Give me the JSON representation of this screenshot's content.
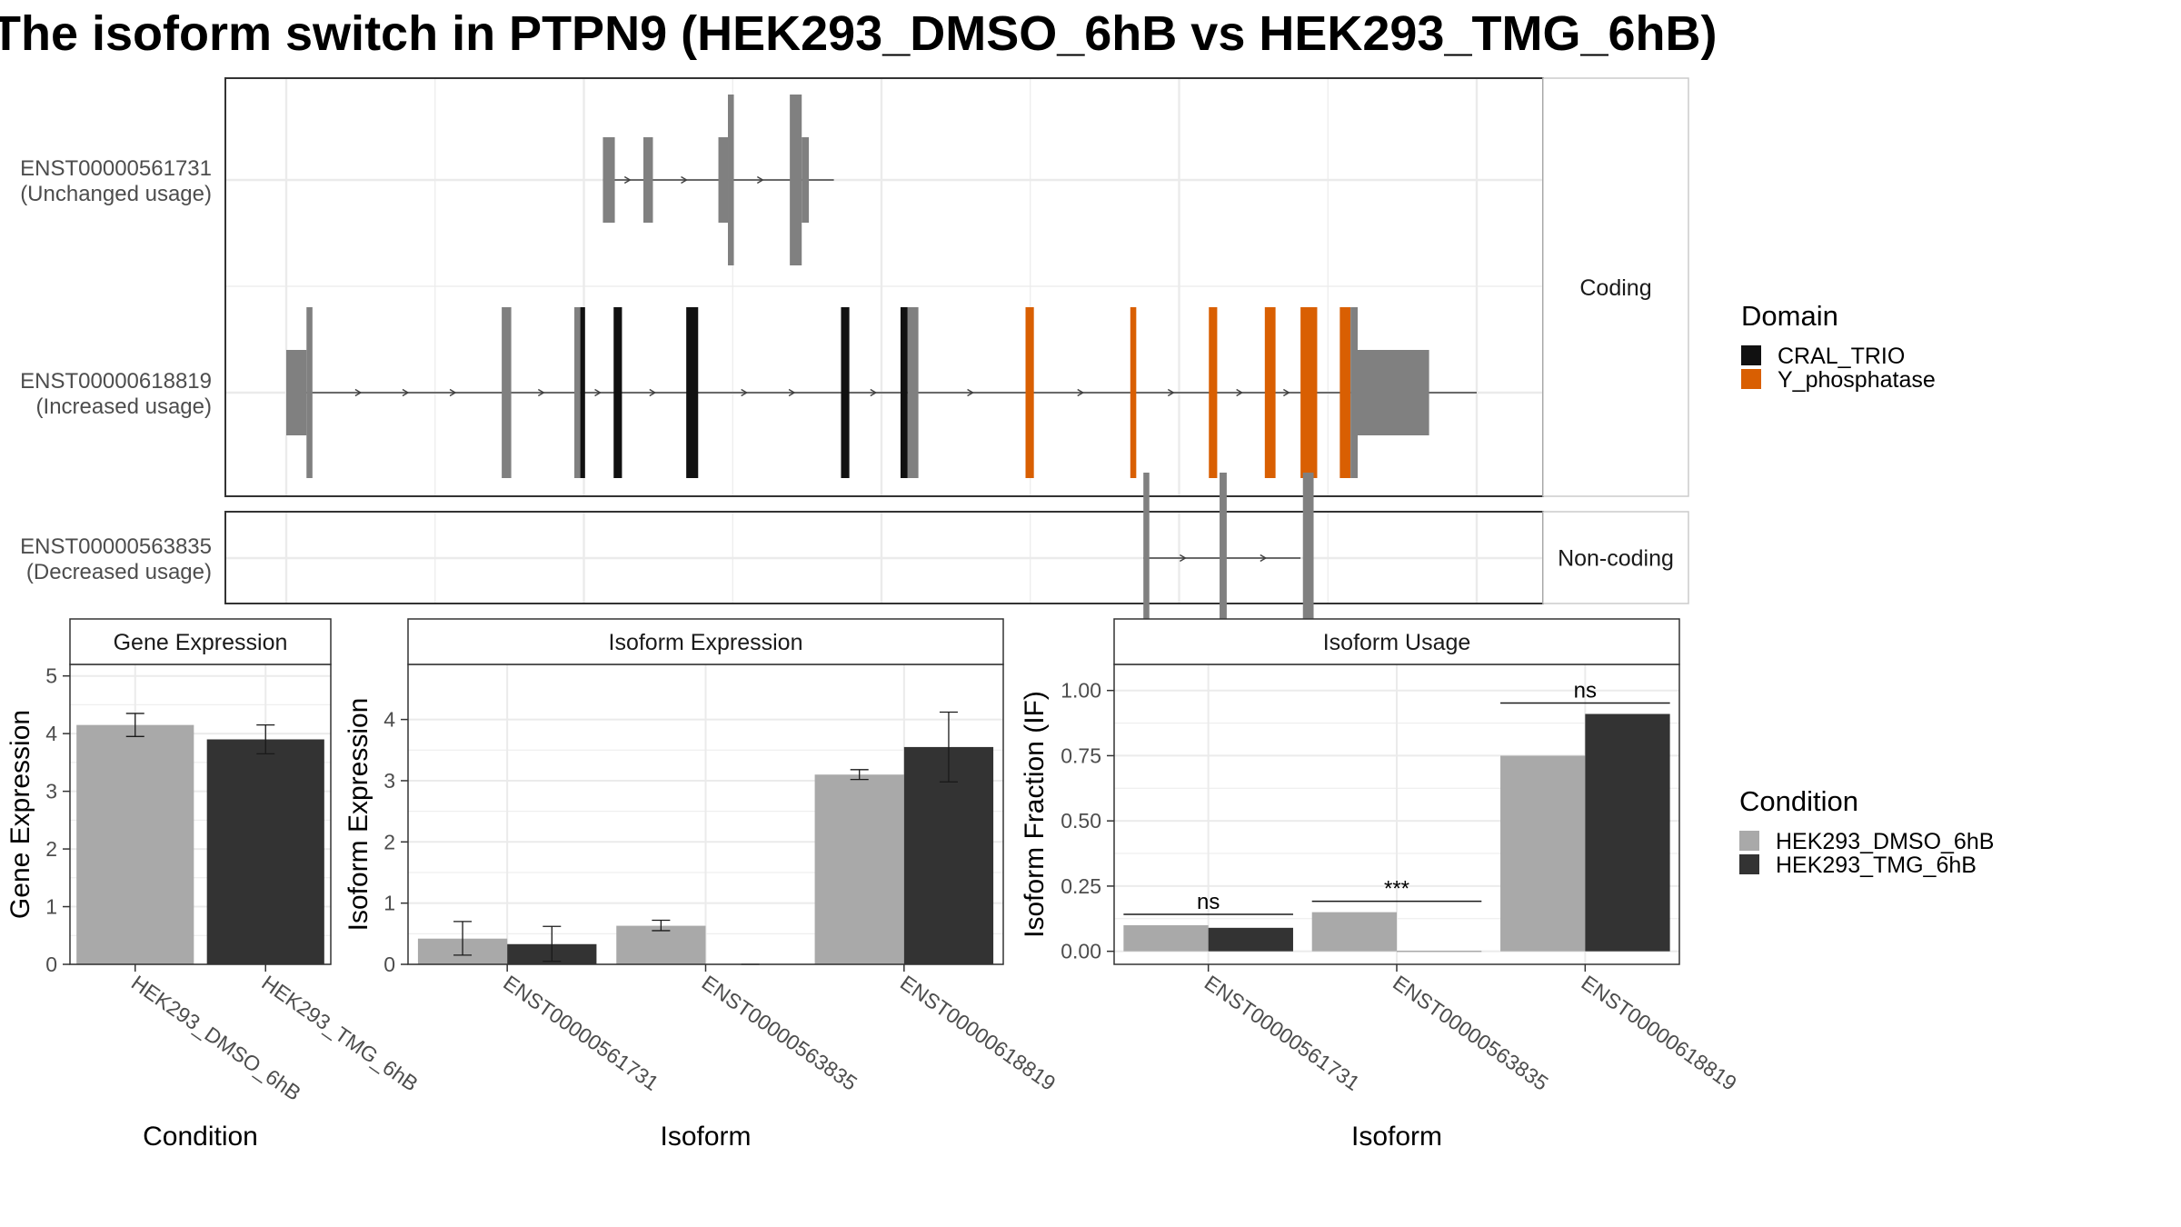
{
  "title": "The isoform switch in PTPN9 (HEK293_DMSO_6hB vs HEK293_TMG_6hB)",
  "colors": {
    "intron": "#404040",
    "exon": "#808080",
    "CRAL_TRIO": "#111111",
    "Y_phosphatase": "#d95f02",
    "cond1": "#a9a9a9",
    "cond2": "#333333",
    "grid": "#ebebeb",
    "strip_bg": "#ffffff"
  },
  "chart_data": [
    {
      "type": "isoform_structure",
      "facets": [
        "Coding",
        "Non-coding"
      ],
      "domain_legend": {
        "title": "Domain",
        "items": [
          "CRAL_TRIO",
          "Y_phosphatase"
        ]
      },
      "x_range": [
        0,
        1000
      ],
      "transcripts": [
        {
          "id": "ENST00000561731",
          "status": "(Unchanged usage)",
          "facet": "Coding",
          "intron": [
            266,
            460
          ],
          "exons": [
            {
              "start": 266,
              "end": 276,
              "kind": "utr",
              "color": "exon"
            },
            {
              "start": 300,
              "end": 308,
              "kind": "utr",
              "color": "exon"
            },
            {
              "start": 363,
              "end": 371,
              "kind": "utr",
              "color": "exon"
            },
            {
              "start": 371,
              "end": 376,
              "kind": "cds",
              "color": "exon"
            },
            {
              "start": 423,
              "end": 433,
              "kind": "cds",
              "color": "exon"
            },
            {
              "start": 433,
              "end": 439,
              "kind": "utr",
              "color": "exon"
            }
          ]
        },
        {
          "id": "ENST00000618819",
          "status": "(Increased usage)",
          "facet": "Coding",
          "intron": [
            0,
            1000
          ],
          "exons": [
            {
              "start": 0,
              "end": 17,
              "kind": "utr",
              "color": "exon"
            },
            {
              "start": 17,
              "end": 22,
              "kind": "cds",
              "color": "exon"
            },
            {
              "start": 181,
              "end": 189,
              "kind": "cds",
              "color": "exon"
            },
            {
              "start": 242,
              "end": 247,
              "kind": "cds",
              "color": "exon"
            },
            {
              "start": 247,
              "end": 251,
              "kind": "cds",
              "color": "CRAL_TRIO"
            },
            {
              "start": 275,
              "end": 282,
              "kind": "cds",
              "color": "CRAL_TRIO"
            },
            {
              "start": 336,
              "end": 346,
              "kind": "cds",
              "color": "CRAL_TRIO"
            },
            {
              "start": 466,
              "end": 473,
              "kind": "cds",
              "color": "CRAL_TRIO"
            },
            {
              "start": 516,
              "end": 522,
              "kind": "cds",
              "color": "CRAL_TRIO"
            },
            {
              "start": 522,
              "end": 531,
              "kind": "cds",
              "color": "exon"
            },
            {
              "start": 621,
              "end": 628,
              "kind": "cds",
              "color": "Y_phosphatase"
            },
            {
              "start": 709,
              "end": 714,
              "kind": "cds",
              "color": "Y_phosphatase"
            },
            {
              "start": 775,
              "end": 782,
              "kind": "cds",
              "color": "Y_phosphatase"
            },
            {
              "start": 822,
              "end": 831,
              "kind": "cds",
              "color": "Y_phosphatase"
            },
            {
              "start": 852,
              "end": 866,
              "kind": "cds",
              "color": "Y_phosphatase"
            },
            {
              "start": 885,
              "end": 894,
              "kind": "cds",
              "color": "Y_phosphatase"
            },
            {
              "start": 894,
              "end": 900,
              "kind": "cds",
              "color": "exon"
            },
            {
              "start": 900,
              "end": 960,
              "kind": "utr",
              "color": "exon"
            }
          ]
        },
        {
          "id": "ENST00000563835",
          "status": "(Decreased usage)",
          "facet": "Non-coding",
          "intron": [
            720,
            852
          ],
          "exons": [
            {
              "start": 720,
              "end": 725,
              "kind": "cds",
              "color": "exon"
            },
            {
              "start": 784,
              "end": 790,
              "kind": "cds",
              "color": "exon"
            },
            {
              "start": 854,
              "end": 863,
              "kind": "cds",
              "color": "exon"
            }
          ]
        }
      ]
    },
    {
      "type": "bar",
      "strip": "Gene Expression",
      "xlabel": "Condition",
      "ylabel": "Gene Expression",
      "ylim": [
        0,
        5.2
      ],
      "yticks": [
        0,
        1,
        2,
        3,
        4,
        5
      ],
      "categories": [
        "HEK293_DMSO_6hB",
        "HEK293_TMG_6hB"
      ],
      "values": [
        4.15,
        3.9
      ],
      "errors": [
        [
          3.95,
          4.35
        ],
        [
          3.65,
          4.15
        ]
      ]
    },
    {
      "type": "bar",
      "strip": "Isoform Expression",
      "xlabel": "Isoform",
      "ylabel": "Isoform Expression",
      "ylim": [
        0,
        4.9
      ],
      "yticks": [
        0,
        1,
        2,
        3,
        4
      ],
      "categories": [
        "ENST00000561731",
        "ENST00000563835",
        "ENST00000618819"
      ],
      "series": [
        {
          "name": "HEK293_DMSO_6hB",
          "values": [
            0.42,
            0.63,
            3.1
          ],
          "errors": [
            [
              0.15,
              0.7
            ],
            [
              0.55,
              0.72
            ],
            [
              3.02,
              3.18
            ]
          ]
        },
        {
          "name": "HEK293_TMG_6hB",
          "values": [
            0.33,
            0.0,
            3.55
          ],
          "errors": [
            [
              0.05,
              0.62
            ],
            [
              0.0,
              0.0
            ],
            [
              2.98,
              4.12
            ]
          ]
        }
      ]
    },
    {
      "type": "bar",
      "strip": "Isoform Usage",
      "xlabel": "Isoform",
      "ylabel": "Isoform Fraction (IF)",
      "ylim": [
        -0.05,
        1.1
      ],
      "yticks": [
        0.0,
        0.25,
        0.5,
        0.75,
        1.0
      ],
      "ytick_labels": [
        "0.00",
        "0.25",
        "0.50",
        "0.75",
        "1.00"
      ],
      "categories": [
        "ENST00000561731",
        "ENST00000563835",
        "ENST00000618819"
      ],
      "series": [
        {
          "name": "HEK293_DMSO_6hB",
          "values": [
            0.1,
            0.15,
            0.75
          ]
        },
        {
          "name": "HEK293_TMG_6hB",
          "values": [
            0.09,
            0.0,
            0.91
          ]
        }
      ],
      "significance": [
        "ns",
        "***",
        "ns"
      ],
      "condition_legend": {
        "title": "Condition",
        "items": [
          "HEK293_DMSO_6hB",
          "HEK293_TMG_6hB"
        ]
      }
    }
  ]
}
